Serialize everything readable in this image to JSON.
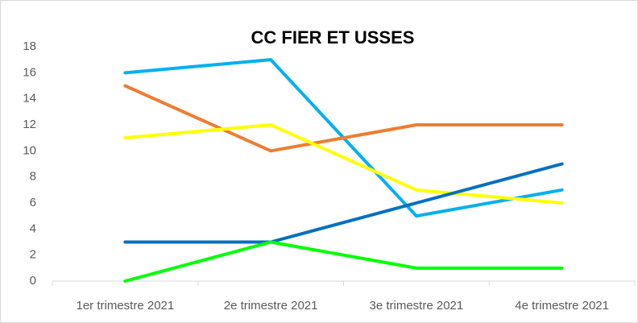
{
  "chart_data": {
    "type": "line",
    "title": "CC FIER ET USSES",
    "categories": [
      "1er trimestre 2021",
      "2e trimestre 2021",
      "3e trimestre 2021",
      "4e trimestre 2021"
    ],
    "series": [
      {
        "color": "#00b0f0",
        "values": [
          16,
          17,
          5,
          7
        ]
      },
      {
        "color": "#ed7d31",
        "values": [
          15,
          10,
          12,
          12
        ]
      },
      {
        "color": "#ffff00",
        "values": [
          11,
          12,
          7,
          6
        ]
      },
      {
        "color": "#0070c0",
        "values": [
          3,
          3,
          6,
          9
        ]
      },
      {
        "color": "#00ff00",
        "values": [
          0,
          3,
          1,
          1
        ]
      }
    ],
    "ylim": [
      0,
      18
    ],
    "yticks": [
      0,
      2,
      4,
      6,
      8,
      10,
      12,
      14,
      16,
      18
    ],
    "grid": false
  }
}
